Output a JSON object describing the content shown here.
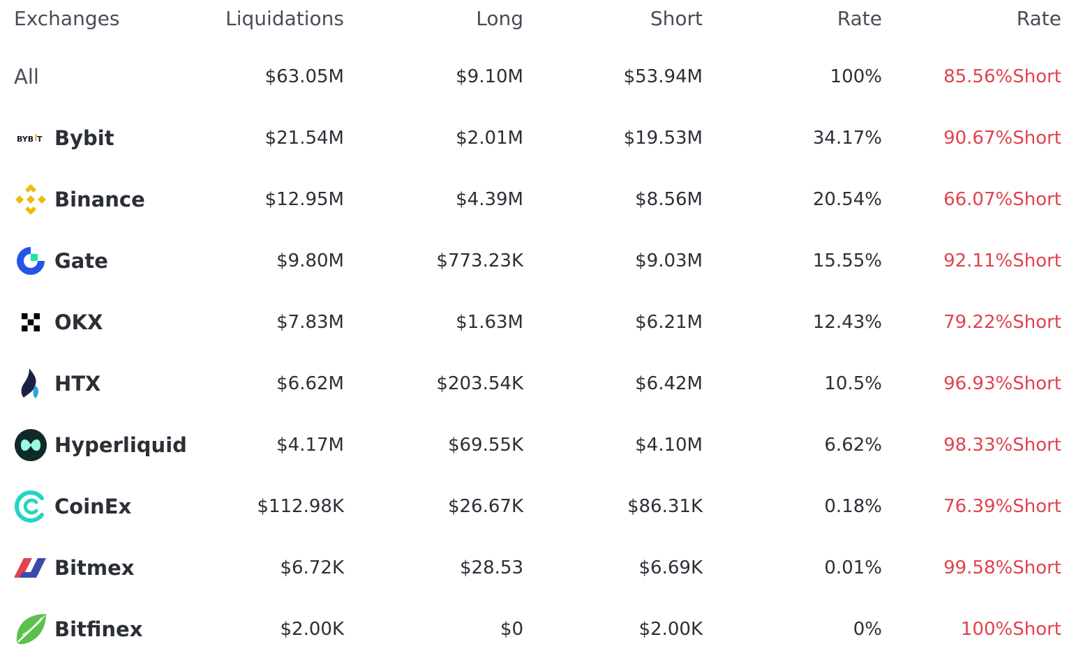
{
  "header": {
    "exchanges": "Exchanges",
    "liquidations": "Liquidations",
    "long": "Long",
    "short": "Short",
    "rate": "Rate",
    "rate2": "Rate"
  },
  "rows": [
    {
      "name": "All",
      "logo": "none",
      "liquidations": "$63.05M",
      "long": "$9.10M",
      "short": "$53.94M",
      "rate": "100%",
      "side_rate": "85.56%Short"
    },
    {
      "name": "Bybit",
      "logo": "bybit-logo",
      "liquidations": "$21.54M",
      "long": "$2.01M",
      "short": "$19.53M",
      "rate": "34.17%",
      "side_rate": "90.67%Short"
    },
    {
      "name": "Binance",
      "logo": "binance-logo",
      "liquidations": "$12.95M",
      "long": "$4.39M",
      "short": "$8.56M",
      "rate": "20.54%",
      "side_rate": "66.07%Short"
    },
    {
      "name": "Gate",
      "logo": "gate-logo",
      "liquidations": "$9.80M",
      "long": "$773.23K",
      "short": "$9.03M",
      "rate": "15.55%",
      "side_rate": "92.11%Short"
    },
    {
      "name": "OKX",
      "logo": "okx-logo",
      "liquidations": "$7.83M",
      "long": "$1.63M",
      "short": "$6.21M",
      "rate": "12.43%",
      "side_rate": "79.22%Short"
    },
    {
      "name": "HTX",
      "logo": "htx-logo",
      "liquidations": "$6.62M",
      "long": "$203.54K",
      "short": "$6.42M",
      "rate": "10.5%",
      "side_rate": "96.93%Short"
    },
    {
      "name": "Hyperliquid",
      "logo": "hyperliquid-logo",
      "liquidations": "$4.17M",
      "long": "$69.55K",
      "short": "$4.10M",
      "rate": "6.62%",
      "side_rate": "98.33%Short"
    },
    {
      "name": "CoinEx",
      "logo": "coinex-logo",
      "liquidations": "$112.98K",
      "long": "$26.67K",
      "short": "$86.31K",
      "rate": "0.18%",
      "side_rate": "76.39%Short"
    },
    {
      "name": "Bitmex",
      "logo": "bitmex-logo",
      "liquidations": "$6.72K",
      "long": "$28.53",
      "short": "$6.69K",
      "rate": "0.01%",
      "side_rate": "99.58%Short"
    },
    {
      "name": "Bitfinex",
      "logo": "bitfinex-logo",
      "liquidations": "$2.00K",
      "long": "$0",
      "short": "$2.00K",
      "rate": "0%",
      "side_rate": "100%Short"
    }
  ],
  "colors": {
    "short_rate": "#e0424f",
    "text": "#2b2f36",
    "header_text": "#474d57"
  }
}
